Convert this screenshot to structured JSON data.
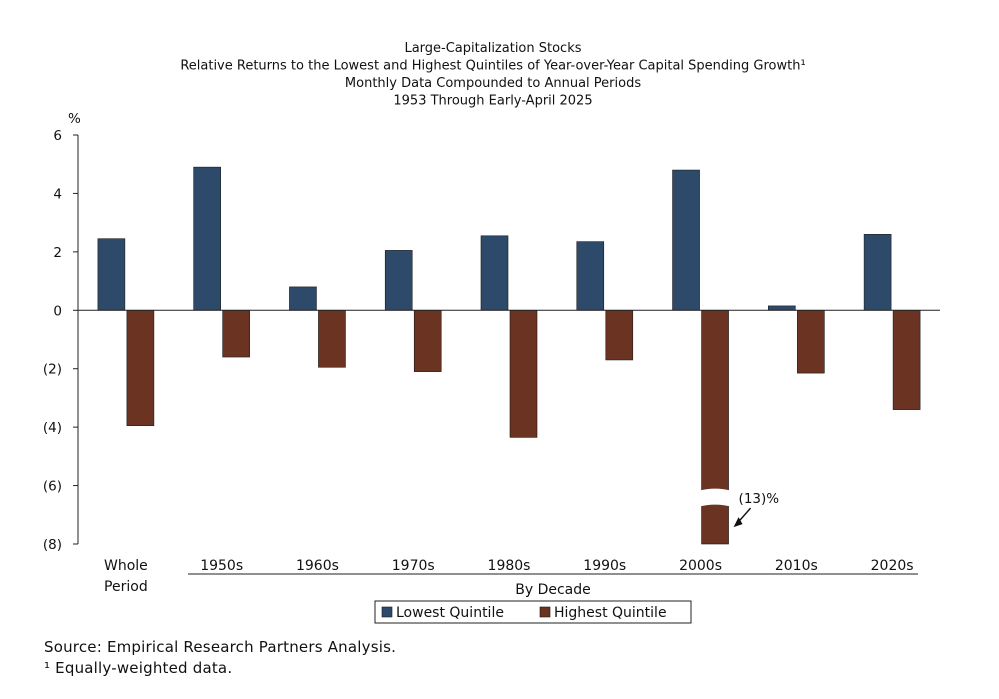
{
  "chart_data": {
    "type": "bar",
    "title_lines": [
      "Large-Capitalization Stocks",
      "Relative Returns to the Lowest and Highest Quintiles of Year-over-Year Capital Spending Growth¹",
      "Monthly Data Compounded to Annual Periods",
      "1953 Through Early-April 2025"
    ],
    "unit_label": "%",
    "categories": [
      [
        "Whole",
        "Period"
      ],
      [
        "1950s"
      ],
      [
        "1960s"
      ],
      [
        "1970s"
      ],
      [
        "1980s"
      ],
      [
        "1990s"
      ],
      [
        "2000s"
      ],
      [
        "2010s"
      ],
      [
        "2020s"
      ]
    ],
    "group_label": "By Decade",
    "series": [
      {
        "name": "Lowest Quintile",
        "color": "#2e4a6b",
        "values": [
          2.45,
          4.9,
          0.8,
          2.05,
          2.55,
          2.35,
          4.8,
          0.15,
          2.6
        ]
      },
      {
        "name": "Highest Quintile",
        "color": "#6b3321",
        "values": [
          -3.95,
          -1.6,
          -1.95,
          -2.1,
          -4.35,
          -1.7,
          -13,
          -2.15,
          -3.4
        ]
      }
    ],
    "y_ticks": [
      6,
      4,
      2,
      0,
      -2,
      -4,
      -6,
      -8
    ],
    "y_tick_labels": [
      "6",
      "4",
      "2",
      "0",
      "(2)",
      "(4)",
      "(6)",
      "(8)"
    ],
    "ylim": [
      -8,
      6
    ],
    "axis_break": {
      "category": "2000s",
      "series": "Highest Quintile",
      "label": "(13)%"
    },
    "legend_position": "bottom-center",
    "grid": false
  },
  "footer": {
    "source": "Source: Empirical Research Partners Analysis.",
    "note": "¹ Equally-weighted data."
  }
}
